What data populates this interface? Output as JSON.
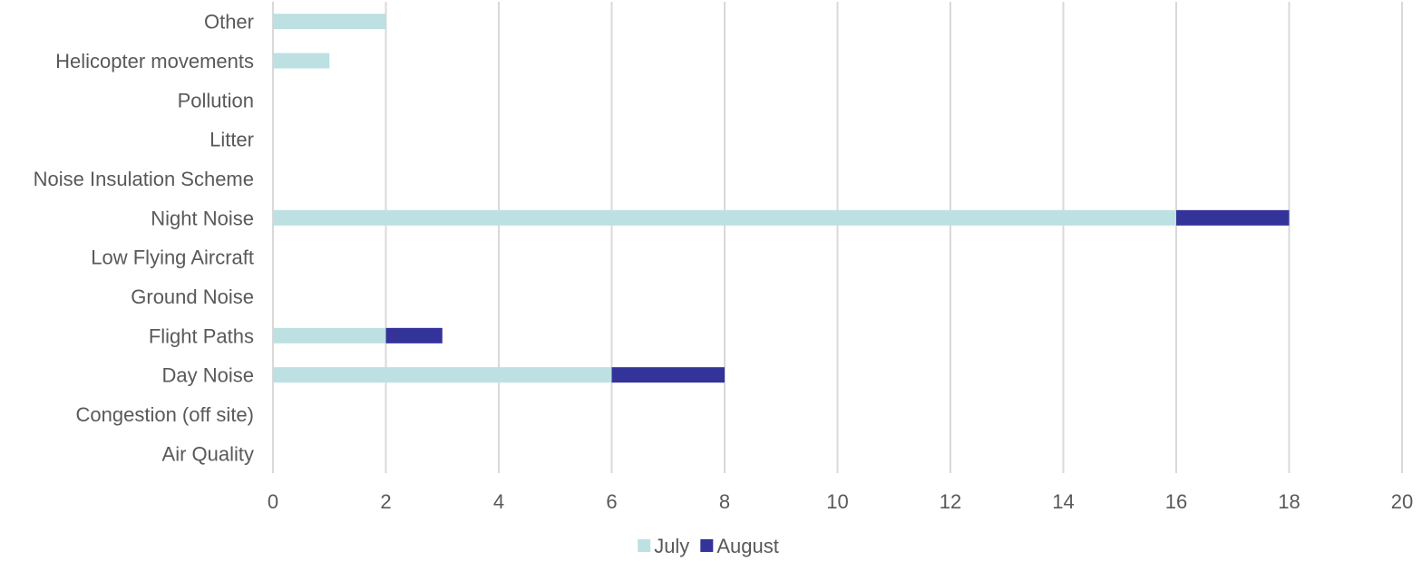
{
  "chart_data": {
    "type": "bar",
    "orientation": "horizontal",
    "stacked": true,
    "categories": [
      "Other",
      "Helicopter movements",
      "Pollution",
      "Litter",
      "Noise Insulation Scheme",
      "Night Noise",
      "Low Flying Aircraft",
      "Ground Noise",
      "Flight Paths",
      "Day Noise",
      "Congestion (off site)",
      "Air Quality"
    ],
    "series": [
      {
        "name": "July",
        "color": "#bde0e2",
        "values": [
          2,
          1,
          0,
          0,
          0,
          16,
          0,
          0,
          2,
          6,
          0,
          0
        ]
      },
      {
        "name": "August",
        "color": "#333399",
        "values": [
          0,
          0,
          0,
          0,
          0,
          2,
          0,
          0,
          1,
          2,
          0,
          0
        ]
      }
    ],
    "xlim": [
      0,
      20
    ],
    "xticks": [
      0,
      2,
      4,
      6,
      8,
      10,
      12,
      14,
      16,
      18,
      20
    ],
    "grid": "vertical",
    "legend_position": "bottom",
    "title": "",
    "xlabel": "",
    "ylabel": ""
  }
}
